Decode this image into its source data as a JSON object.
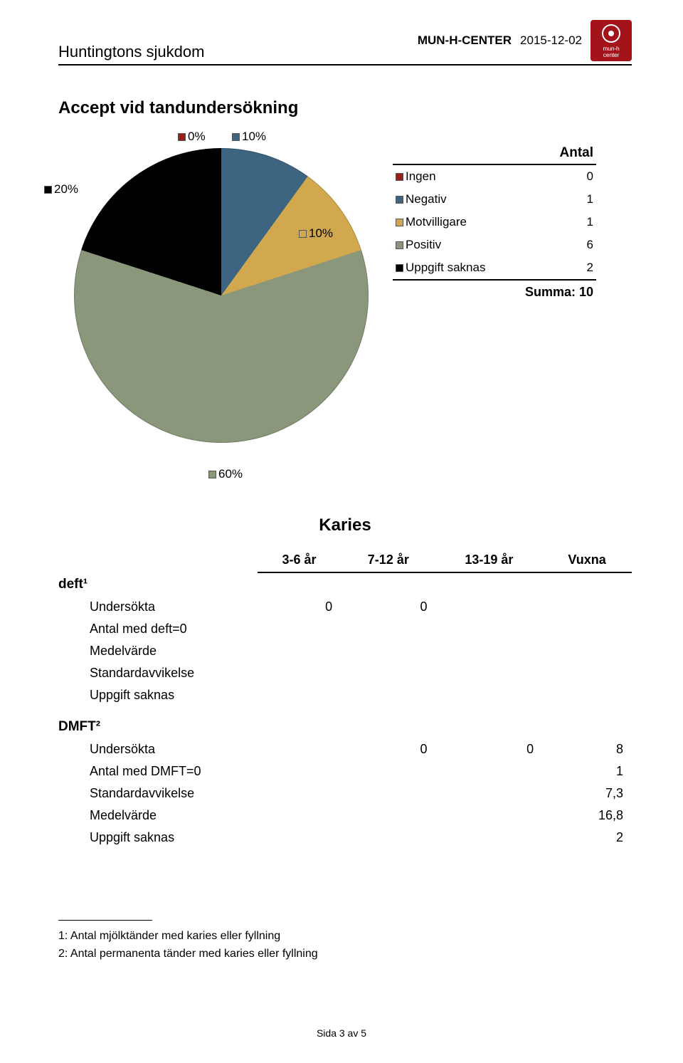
{
  "header": {
    "title_left": "Huntingtons sjukdom",
    "center": "MUN-H-CENTER",
    "date": "2015-12-02",
    "logo": {
      "bg": "#a2131a",
      "text_line1": "mun-h",
      "text_line2": "center"
    }
  },
  "section_title": "Accept vid tandundersökning",
  "pie": {
    "labels": {
      "p20": "20%",
      "p0": "0%",
      "p10a": "10%",
      "p10b": "10%",
      "p60": "60%"
    },
    "slices": [
      {
        "name": "Ingen",
        "pct": 0,
        "color": "#9c1c1a"
      },
      {
        "name": "Negativ",
        "pct": 10,
        "color": "#3d6480"
      },
      {
        "name": "Motvilligare",
        "pct": 10,
        "color": "#d2a84f"
      },
      {
        "name": "Positiv",
        "pct": 60,
        "color": "#8a977a"
      },
      {
        "name": "Uppgift saknas",
        "pct": 20,
        "color": "#000000"
      }
    ],
    "start_angle_deg": 0
  },
  "legend": {
    "header": "Antal",
    "rows": [
      {
        "color": "#9c1c1a",
        "label": "Ingen",
        "value": "0"
      },
      {
        "color": "#3d6480",
        "label": "Negativ",
        "value": "1"
      },
      {
        "color": "#d2a84f",
        "label": "Motvilligare",
        "value": "1"
      },
      {
        "color": "#8a977a",
        "label": "Positiv",
        "value": "6"
      },
      {
        "color": "#000000",
        "label": "Uppgift saknas",
        "value": "2"
      }
    ],
    "summa": "Summa: 10"
  },
  "karies": {
    "title": "Karies",
    "columns": [
      "3-6 år",
      "7-12 år",
      "13-19 år",
      "Vuxna"
    ],
    "groups": [
      {
        "name": "deft¹",
        "rows": [
          {
            "label": "Undersökta",
            "values": [
              "0",
              "0",
              "",
              ""
            ]
          },
          {
            "label": "Antal med deft=0",
            "values": [
              "",
              "",
              "",
              ""
            ]
          },
          {
            "label": "Medelvärde",
            "values": [
              "",
              "",
              "",
              ""
            ]
          },
          {
            "label": "Standardavvikelse",
            "values": [
              "",
              "",
              "",
              ""
            ]
          },
          {
            "label": "Uppgift saknas",
            "values": [
              "",
              "",
              "",
              ""
            ]
          }
        ]
      },
      {
        "name": "DMFT²",
        "rows": [
          {
            "label": "Undersökta",
            "values": [
              "",
              "0",
              "0",
              "8"
            ]
          },
          {
            "label": "Antal med DMFT=0",
            "values": [
              "",
              "",
              "",
              "1"
            ]
          },
          {
            "label": "Standardavvikelse",
            "values": [
              "",
              "",
              "",
              "7,3"
            ]
          },
          {
            "label": "Medelvärde",
            "values": [
              "",
              "",
              "",
              "16,8"
            ]
          },
          {
            "label": "Uppgift saknas",
            "values": [
              "",
              "",
              "",
              "2"
            ]
          }
        ]
      }
    ]
  },
  "footnotes": {
    "f1": "1: Antal mjölktänder med karies eller fyllning",
    "f2": "2: Antal permanenta tänder med karies eller fyllning"
  },
  "page_footer": "Sida 3 av 5"
}
